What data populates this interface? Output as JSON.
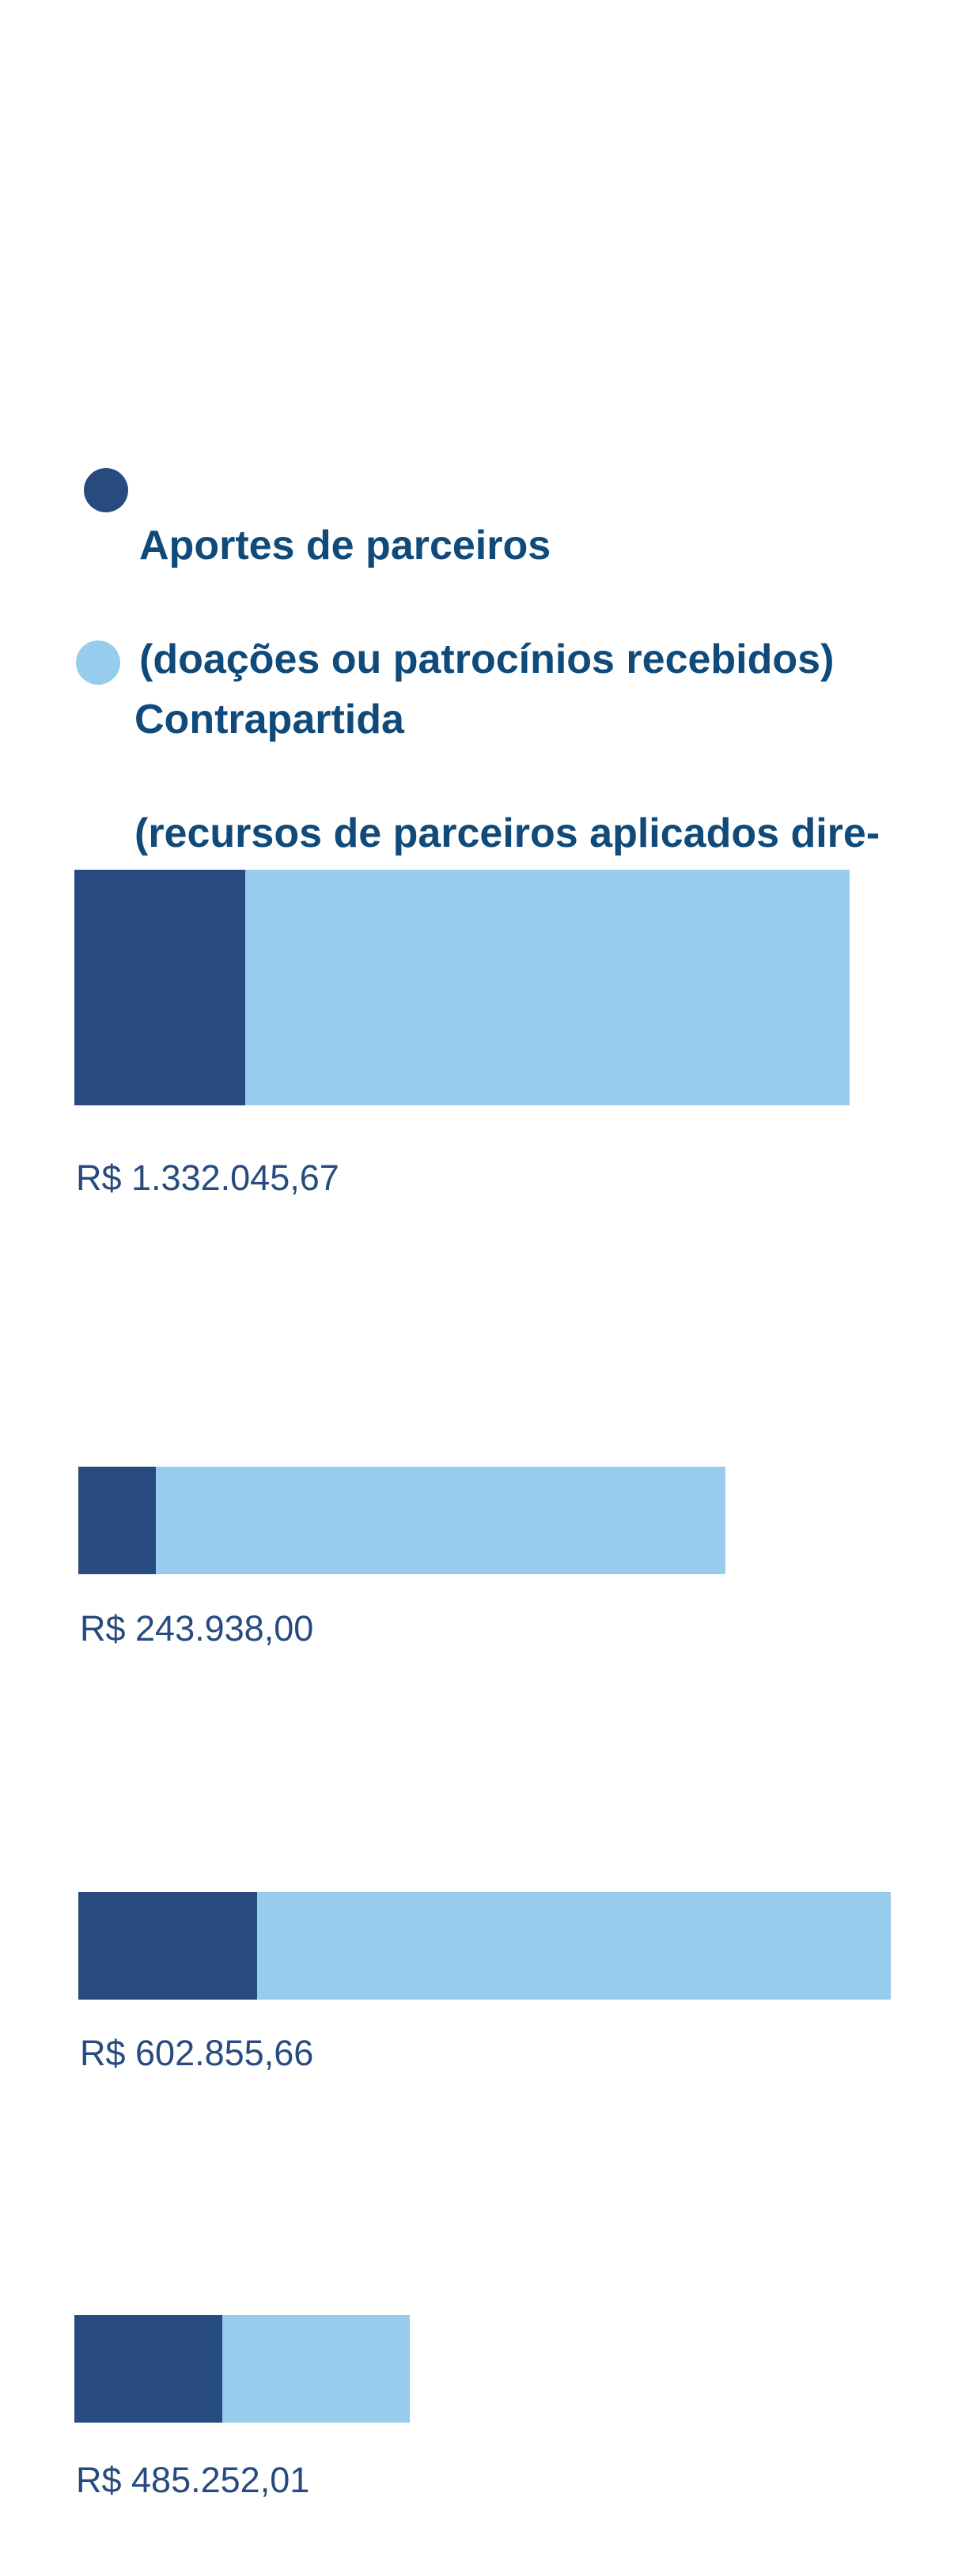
{
  "legend": [
    {
      "line1": "Aportes de parceiros",
      "line2": "(doações ou patrocínios recebidos)",
      "color": "#274b7f"
    },
    {
      "line1": "Contrapartida",
      "line2": "(recursos de parceiros aplicados dire-\ntamente aos projetos)",
      "color": "#97ccec"
    }
  ],
  "chart_data": {
    "type": "bar",
    "orientation": "horizontal",
    "stacked": true,
    "series": [
      {
        "name": "Aportes de parceiros (doações ou patrocínios recebidos)",
        "color": "#274b7f"
      },
      {
        "name": "Contrapartida (recursos de parceiros aplicados diretamente aos projetos)",
        "color": "#97ccec"
      }
    ],
    "bars": [
      {
        "label": "R$ 1.332.045,67",
        "total": 1332045.67,
        "aportes_share": 0.22
      },
      {
        "label": "R$ 243.938,00",
        "total": 243938.0,
        "aportes_share": 0.12
      },
      {
        "label": "R$ 602.855,66",
        "total": 602855.66,
        "aportes_share": 0.22
      },
      {
        "label": "R$ 485.252,01",
        "total": 485252.01,
        "aportes_share": 0.44
      }
    ],
    "label_color": "#274b7f"
  }
}
